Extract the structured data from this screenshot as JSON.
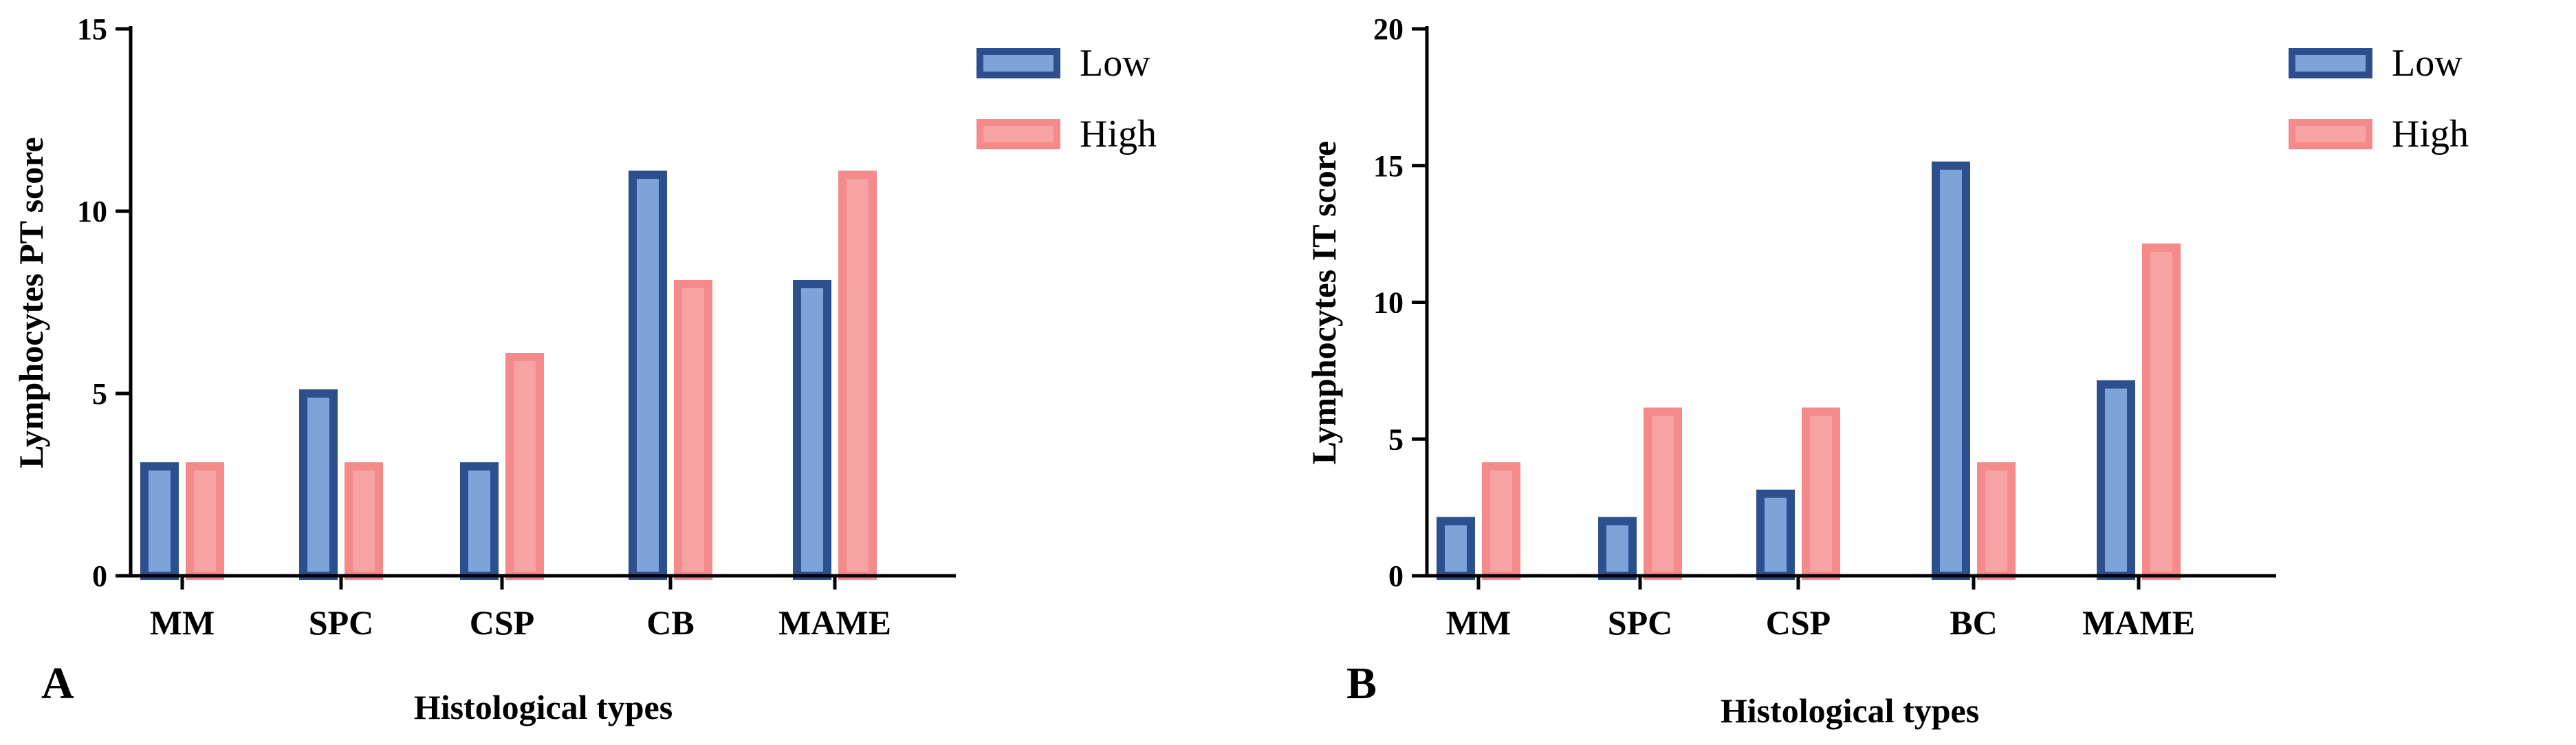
{
  "chart_data": [
    {
      "panel_label": "A",
      "type": "bar",
      "xlabel": "Histological types",
      "ylabel": "Lymphocytes PT score",
      "ylim": [
        0,
        15
      ],
      "yticks": [
        0,
        5,
        10,
        15
      ],
      "categories": [
        "MM",
        "SPC",
        "CSP",
        "CB",
        "MAME"
      ],
      "series": [
        {
          "name": "Low",
          "values": [
            3,
            5,
            3,
            11,
            8
          ],
          "fill": "#7ea3d8",
          "stroke": "#2d4f8e"
        },
        {
          "name": "High",
          "values": [
            3,
            3,
            6,
            8,
            11
          ],
          "fill": "#f7a3a3",
          "stroke": "#f48a8a"
        }
      ],
      "legend_position": "top-right"
    },
    {
      "panel_label": "B",
      "type": "bar",
      "xlabel": "Histological types",
      "ylabel": "Lymphocytes IT score",
      "ylim": [
        0,
        20
      ],
      "yticks": [
        0,
        5,
        10,
        15,
        20
      ],
      "categories": [
        "MM",
        "SPC",
        "CSP",
        "BC",
        "MAME"
      ],
      "series": [
        {
          "name": "Low",
          "values": [
            2,
            2,
            3,
            15,
            7
          ],
          "fill": "#7ea3d8",
          "stroke": "#2d4f8e"
        },
        {
          "name": "High",
          "values": [
            4,
            6,
            6,
            4,
            12
          ],
          "fill": "#f7a3a3",
          "stroke": "#f48a8a"
        }
      ],
      "legend_position": "top-right"
    }
  ]
}
